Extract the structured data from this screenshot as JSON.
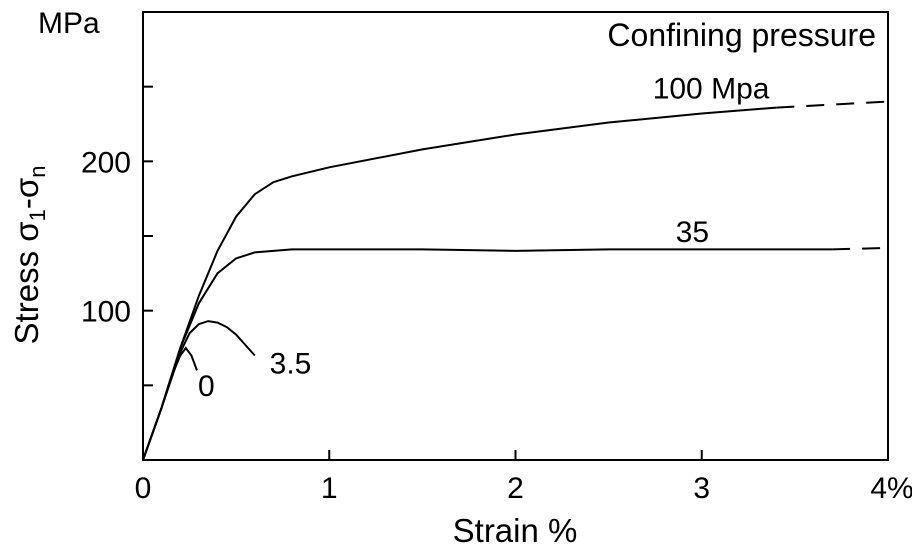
{
  "chart_data": {
    "type": "line",
    "title": "",
    "xlabel": "Strain %",
    "ylabel_parts": {
      "base": "Stress σ",
      "sub1": "1",
      "mid": "-σ",
      "sub2": "n"
    },
    "y_unit": "MPa",
    "legend_title": "Confining pressure",
    "xlim": [
      0,
      4
    ],
    "ylim": [
      0,
      300
    ],
    "x_ticks": [
      0,
      1,
      2,
      3,
      4
    ],
    "x_tick_labels": [
      "0",
      "1",
      "2",
      "3",
      "4%"
    ],
    "y_ticks": [
      50,
      100,
      150,
      200,
      250
    ],
    "y_tick_labels": [
      "",
      "100",
      "",
      "200",
      ""
    ],
    "series": [
      {
        "name": "100 Mpa",
        "x": [
          0,
          0.1,
          0.2,
          0.3,
          0.4,
          0.5,
          0.6,
          0.7,
          0.8,
          1.0,
          1.5,
          2.0,
          2.5,
          3.0,
          3.4
        ],
        "y": [
          0,
          35,
          75,
          110,
          140,
          163,
          178,
          186,
          190,
          196,
          208,
          218,
          226,
          232,
          236
        ],
        "extrapolated": {
          "x": [
            3.4,
            4.0
          ],
          "y": [
            236,
            240
          ]
        }
      },
      {
        "name": "35",
        "x": [
          0,
          0.1,
          0.2,
          0.3,
          0.4,
          0.5,
          0.6,
          0.7,
          0.8,
          1.0,
          1.5,
          2.0,
          2.5,
          3.0,
          3.5,
          3.7
        ],
        "y": [
          0,
          35,
          75,
          105,
          125,
          135,
          139,
          140,
          141,
          141,
          141,
          140,
          141,
          141,
          141,
          141
        ],
        "extrapolated": {
          "x": [
            3.7,
            4.0
          ],
          "y": [
            141,
            142
          ]
        }
      },
      {
        "name": "3.5",
        "x": [
          0,
          0.1,
          0.2,
          0.25,
          0.3,
          0.35,
          0.4,
          0.45,
          0.5,
          0.55,
          0.6
        ],
        "y": [
          0,
          35,
          72,
          85,
          91,
          93,
          92,
          89,
          84,
          77,
          70
        ]
      },
      {
        "name": "0",
        "x": [
          0,
          0.1,
          0.15,
          0.2,
          0.23,
          0.26,
          0.29
        ],
        "y": [
          0,
          35,
          55,
          70,
          75,
          70,
          60
        ]
      }
    ]
  }
}
